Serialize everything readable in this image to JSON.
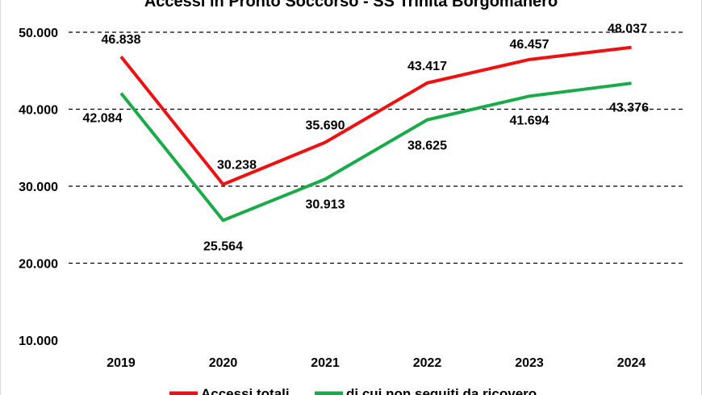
{
  "chart_data": {
    "type": "line",
    "title": "Accessi in Pronto Soccorso - SS Trinità Borgomanero",
    "categories": [
      "2019",
      "2020",
      "2021",
      "2022",
      "2023",
      "2024"
    ],
    "ylim": [
      10000,
      50000
    ],
    "yticks": [
      10000,
      20000,
      30000,
      40000,
      50000
    ],
    "ytick_labels": [
      "10.000",
      "20.000",
      "30.000",
      "40.000",
      "50.000"
    ],
    "grid": "horizontal dashed",
    "legend": "bottom",
    "series": [
      {
        "name": "Accessi totali",
        "color": "#ee1111",
        "values": [
          46838,
          30238,
          35690,
          43417,
          46457,
          48037
        ],
        "labels": [
          "46.838",
          "30.238",
          "35.690",
          "43.417",
          "46.457",
          "48.037"
        ]
      },
      {
        "name": "di cui non seguiti da ricovero",
        "color": "#1aaa4a",
        "values": [
          42084,
          25564,
          30913,
          38625,
          41694,
          43376
        ],
        "labels": [
          "42.084",
          "25.564",
          "30.913",
          "38.625",
          "41.694",
          "43.376"
        ]
      }
    ]
  }
}
